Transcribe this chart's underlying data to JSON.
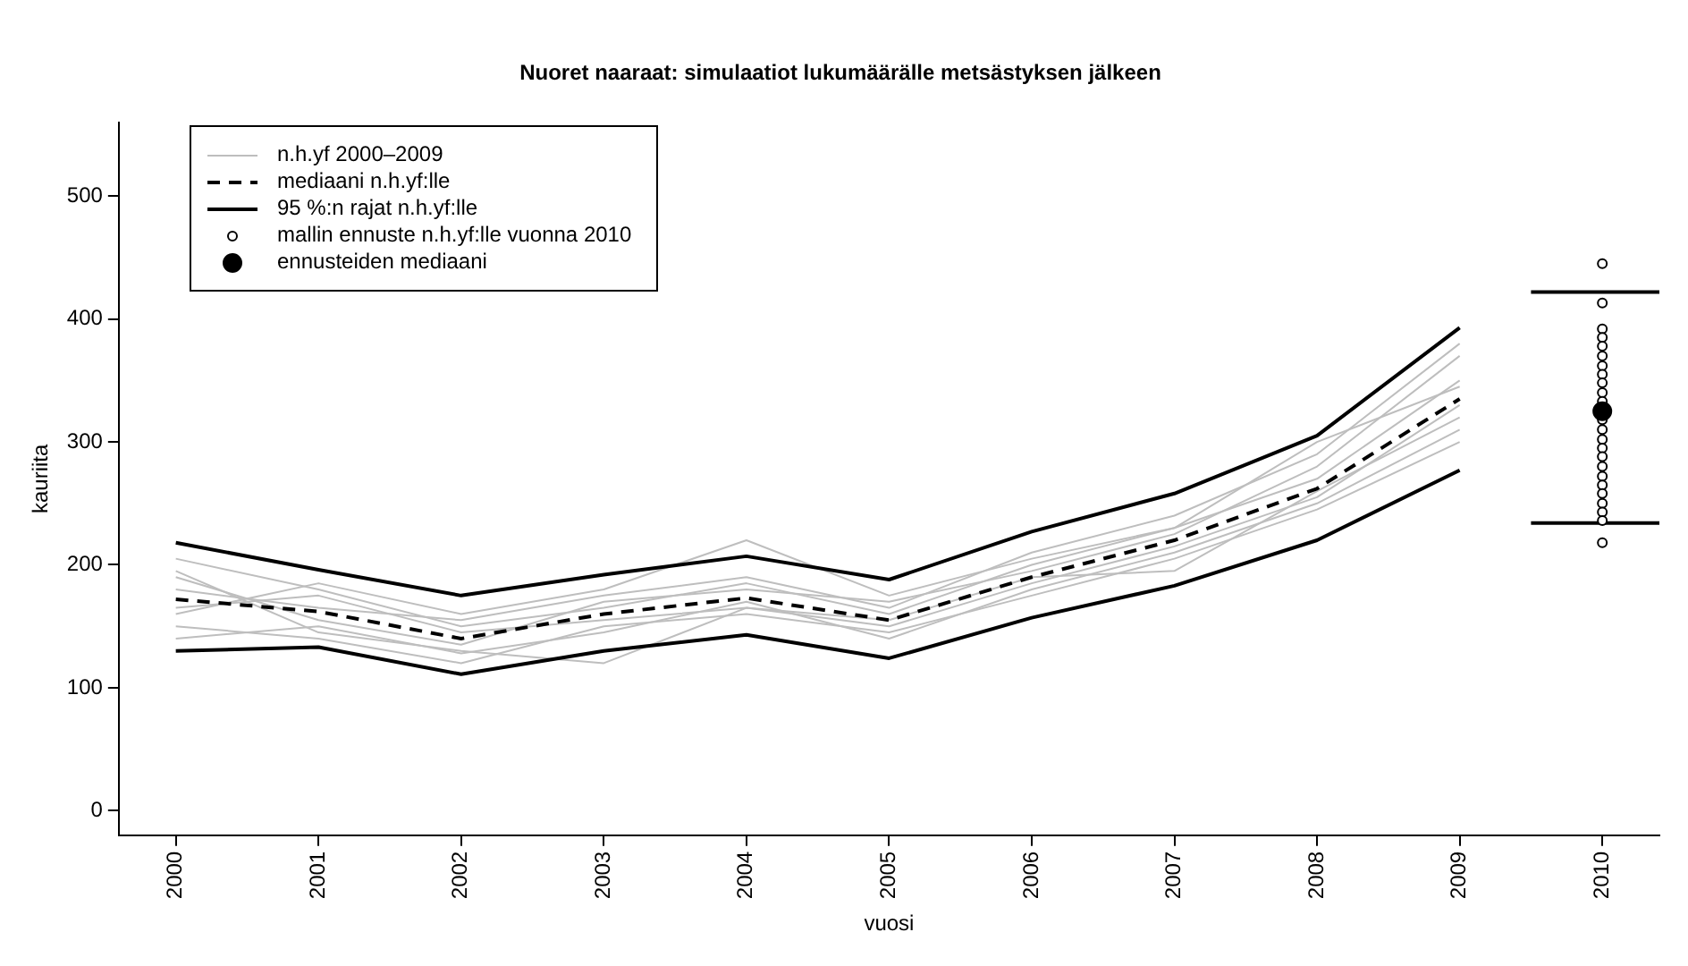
{
  "chart_data": {
    "type": "line",
    "title": "Nuoret naaraat: simulaatiot lukumäärälle metsästyksen jälkeen",
    "xlabel": "vuosi",
    "ylabel": "kauriita",
    "x": [
      2000,
      2001,
      2002,
      2003,
      2004,
      2005,
      2006,
      2007,
      2008,
      2009
    ],
    "xlim": [
      1999.6,
      2010.4
    ],
    "xticks": [
      2000,
      2001,
      2002,
      2003,
      2004,
      2005,
      2006,
      2007,
      2008,
      2009,
      2010
    ],
    "ylim": [
      -20,
      560
    ],
    "yticks": [
      0,
      100,
      200,
      300,
      400,
      500
    ],
    "grid": false,
    "legend": "top left",
    "series": [
      {
        "name": "n.h.yf 2000–2009",
        "color": "#bebebe",
        "values": [
          205,
          180,
          150,
          165,
          185,
          160,
          200,
          230,
          270,
          350
        ]
      },
      {
        "color": "#bebebe",
        "values": [
          150,
          140,
          120,
          150,
          160,
          145,
          175,
          205,
          245,
          300
        ]
      },
      {
        "color": "#bebebe",
        "values": [
          190,
          155,
          135,
          170,
          180,
          170,
          195,
          225,
          280,
          370
        ]
      },
      {
        "color": "#bebebe",
        "values": [
          165,
          175,
          145,
          155,
          165,
          150,
          185,
          215,
          255,
          330
        ]
      },
      {
        "color": "#bebebe",
        "values": [
          140,
          150,
          128,
          145,
          170,
          140,
          180,
          210,
          250,
          310
        ]
      },
      {
        "color": "#bebebe",
        "values": [
          180,
          165,
          155,
          175,
          190,
          165,
          210,
          240,
          290,
          380
        ]
      },
      {
        "color": "#bebebe",
        "values": [
          195,
          145,
          130,
          120,
          165,
          155,
          190,
          195,
          260,
          320
        ]
      },
      {
        "color": "#bebebe",
        "values": [
          160,
          185,
          160,
          180,
          220,
          175,
          205,
          230,
          300,
          345
        ]
      },
      {
        "name": "mediaani n.h.yf:lle",
        "color": "#000000",
        "line_style": "dashed",
        "values": [
          172,
          162,
          140,
          160,
          173,
          155,
          190,
          220,
          262,
          335
        ]
      },
      {
        "name": "95 %:n rajat n.h.yf:lle",
        "color": "#000000",
        "values": [
          218,
          196,
          175,
          192,
          207,
          188,
          227,
          258,
          305,
          393
        ]
      },
      {
        "color": "#000000",
        "values": [
          130,
          133,
          111,
          130,
          143,
          124,
          157,
          183,
          220,
          277
        ]
      },
      {
        "color": "#000000",
        "x": [
          2009.5,
          2010.4
        ],
        "values": [
          422,
          422
        ]
      },
      {
        "color": "#000000",
        "x": [
          2009.5,
          2010.4
        ],
        "values": [
          234,
          234
        ]
      },
      {
        "name": "mallin ennuste n.h.yf:lle vuonna 2010",
        "type": "scatter",
        "marker": "circle",
        "color": "#000000",
        "x": [
          2010,
          2010,
          2010,
          2010,
          2010,
          2010,
          2010,
          2010,
          2010,
          2010,
          2010,
          2010,
          2010,
          2010,
          2010,
          2010,
          2010,
          2010,
          2010,
          2010,
          2010,
          2010,
          2010,
          2010
        ],
        "values": [
          445,
          413,
          392,
          385,
          378,
          370,
          362,
          355,
          348,
          340,
          333,
          318,
          310,
          302,
          295,
          288,
          280,
          272,
          265,
          258,
          250,
          243,
          236,
          218
        ]
      },
      {
        "name": "ennusteiden mediaani",
        "type": "scatter",
        "marker": "circle",
        "color": "#000000",
        "x": [
          2010
        ],
        "values": [
          325
        ]
      }
    ]
  }
}
